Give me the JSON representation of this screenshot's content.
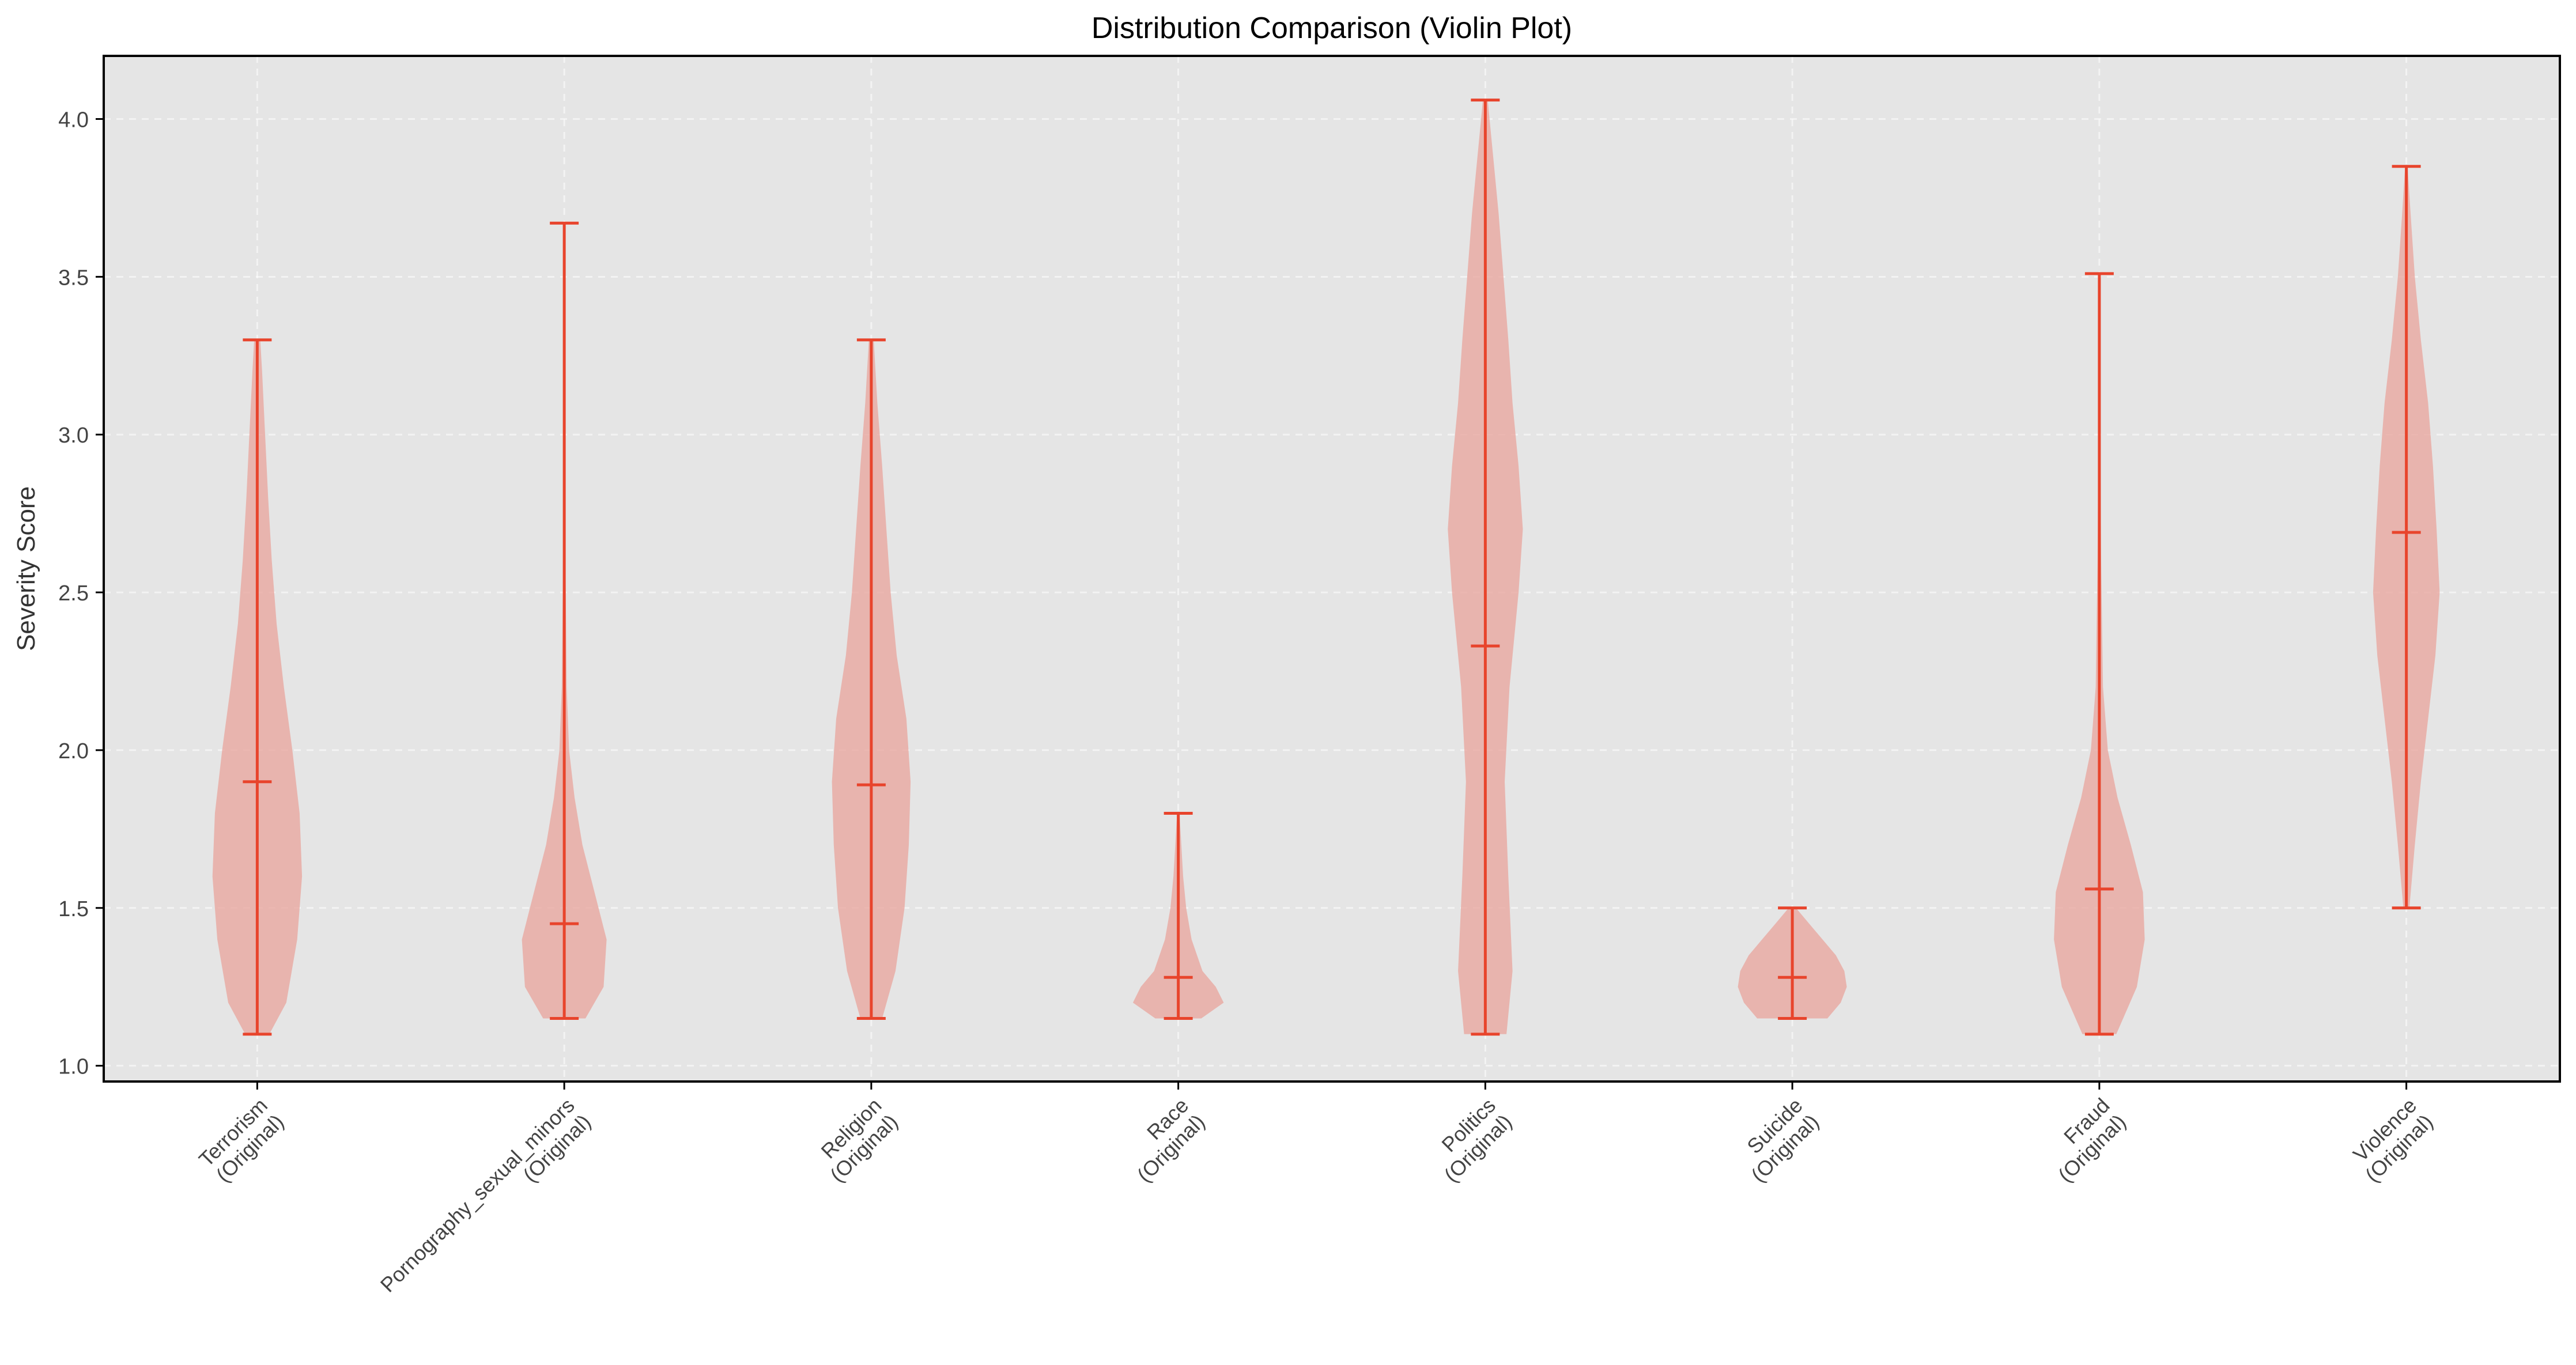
{
  "chart_data": {
    "type": "violin",
    "title": "Distribution Comparison (Violin Plot)",
    "xlabel": "",
    "ylabel": "Severity Score",
    "ylim": [
      0.95,
      4.2
    ],
    "yticks": [
      1.0,
      1.5,
      2.0,
      2.5,
      3.0,
      3.5,
      4.0
    ],
    "ytick_labels": [
      "1.0",
      "1.5",
      "2.0",
      "2.5",
      "3.0",
      "3.5",
      "4.0"
    ],
    "grid": true,
    "colors": {
      "body": "#e8a39b",
      "stats": "#e8442c",
      "plot_bg": "#e5e5e5"
    },
    "categories": [
      {
        "line1": "Terrorism",
        "line2": "(Original)",
        "min": 1.1,
        "mean": 1.9,
        "max": 3.3,
        "density": [
          [
            1.1,
            0.2
          ],
          [
            1.2,
            0.48
          ],
          [
            1.4,
            0.66
          ],
          [
            1.6,
            0.74
          ],
          [
            1.8,
            0.7
          ],
          [
            2.0,
            0.58
          ],
          [
            2.2,
            0.44
          ],
          [
            2.4,
            0.32
          ],
          [
            2.6,
            0.24
          ],
          [
            2.8,
            0.18
          ],
          [
            3.0,
            0.13
          ],
          [
            3.2,
            0.08
          ],
          [
            3.3,
            0.05
          ]
        ]
      },
      {
        "line1": "Pornography_sexual_minors",
        "line2": "(Original)",
        "min": 1.15,
        "mean": 1.45,
        "max": 3.67,
        "density": [
          [
            1.15,
            0.35
          ],
          [
            1.25,
            0.65
          ],
          [
            1.4,
            0.7
          ],
          [
            1.55,
            0.5
          ],
          [
            1.7,
            0.3
          ],
          [
            1.85,
            0.17
          ],
          [
            2.0,
            0.08
          ],
          [
            2.2,
            0.04
          ],
          [
            2.6,
            0.02
          ],
          [
            3.0,
            0.012
          ],
          [
            3.4,
            0.008
          ],
          [
            3.67,
            0.005
          ]
        ]
      },
      {
        "line1": "Religion",
        "line2": "(Original)",
        "min": 1.15,
        "mean": 1.89,
        "max": 3.3,
        "density": [
          [
            1.15,
            0.18
          ],
          [
            1.3,
            0.4
          ],
          [
            1.5,
            0.55
          ],
          [
            1.7,
            0.62
          ],
          [
            1.9,
            0.65
          ],
          [
            2.1,
            0.58
          ],
          [
            2.3,
            0.42
          ],
          [
            2.5,
            0.32
          ],
          [
            2.7,
            0.25
          ],
          [
            2.9,
            0.18
          ],
          [
            3.1,
            0.1
          ],
          [
            3.3,
            0.04
          ]
        ]
      },
      {
        "line1": "Race",
        "line2": "(Original)",
        "min": 1.15,
        "mean": 1.28,
        "max": 1.8,
        "density": [
          [
            1.15,
            0.38
          ],
          [
            1.2,
            0.75
          ],
          [
            1.25,
            0.62
          ],
          [
            1.3,
            0.4
          ],
          [
            1.4,
            0.22
          ],
          [
            1.5,
            0.13
          ],
          [
            1.6,
            0.08
          ],
          [
            1.7,
            0.05
          ],
          [
            1.8,
            0.02
          ]
        ]
      },
      {
        "line1": "Politics",
        "line2": "(Original)",
        "min": 1.1,
        "mean": 2.33,
        "max": 4.06,
        "density": [
          [
            1.1,
            0.35
          ],
          [
            1.3,
            0.45
          ],
          [
            1.6,
            0.38
          ],
          [
            1.9,
            0.32
          ],
          [
            2.2,
            0.4
          ],
          [
            2.5,
            0.55
          ],
          [
            2.7,
            0.62
          ],
          [
            2.9,
            0.55
          ],
          [
            3.1,
            0.45
          ],
          [
            3.3,
            0.38
          ],
          [
            3.5,
            0.3
          ],
          [
            3.7,
            0.22
          ],
          [
            3.9,
            0.12
          ],
          [
            4.06,
            0.04
          ]
        ]
      },
      {
        "line1": "Suicide",
        "line2": "(Original)",
        "min": 1.15,
        "mean": 1.28,
        "max": 1.5,
        "density": [
          [
            1.15,
            0.58
          ],
          [
            1.2,
            0.8
          ],
          [
            1.25,
            0.9
          ],
          [
            1.3,
            0.86
          ],
          [
            1.35,
            0.72
          ],
          [
            1.4,
            0.5
          ],
          [
            1.45,
            0.28
          ],
          [
            1.5,
            0.06
          ]
        ]
      },
      {
        "line1": "Fraud",
        "line2": "(Original)",
        "min": 1.1,
        "mean": 1.56,
        "max": 3.51,
        "density": [
          [
            1.1,
            0.28
          ],
          [
            1.25,
            0.62
          ],
          [
            1.4,
            0.75
          ],
          [
            1.55,
            0.72
          ],
          [
            1.7,
            0.52
          ],
          [
            1.85,
            0.3
          ],
          [
            2.0,
            0.14
          ],
          [
            2.2,
            0.06
          ],
          [
            2.6,
            0.03
          ],
          [
            3.0,
            0.015
          ],
          [
            3.51,
            0.005
          ]
        ]
      },
      {
        "line1": "Violence",
        "line2": "(Original)",
        "min": 1.5,
        "mean": 2.69,
        "max": 3.85,
        "density": [
          [
            1.5,
            0.05
          ],
          [
            1.7,
            0.14
          ],
          [
            1.9,
            0.24
          ],
          [
            2.1,
            0.36
          ],
          [
            2.3,
            0.48
          ],
          [
            2.5,
            0.55
          ],
          [
            2.7,
            0.5
          ],
          [
            2.9,
            0.44
          ],
          [
            3.1,
            0.36
          ],
          [
            3.3,
            0.24
          ],
          [
            3.5,
            0.14
          ],
          [
            3.7,
            0.07
          ],
          [
            3.85,
            0.02
          ]
        ]
      }
    ]
  }
}
